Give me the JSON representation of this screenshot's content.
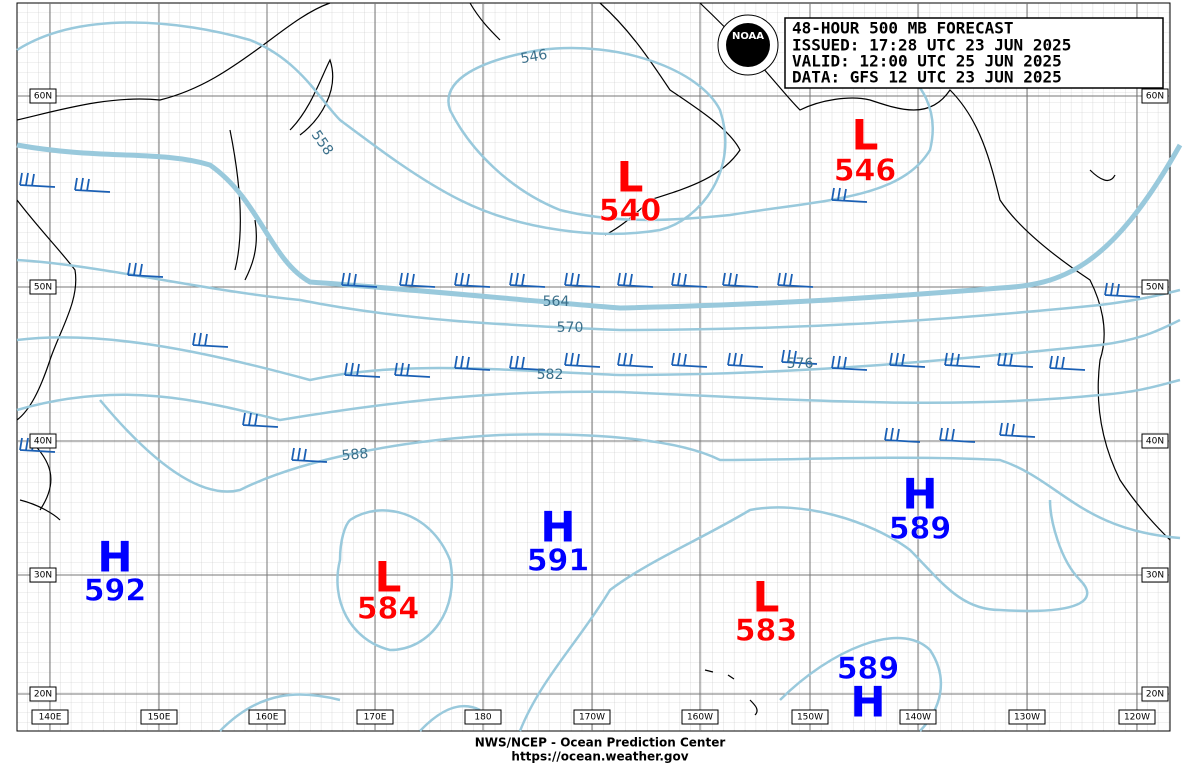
{
  "header": {
    "lines": [
      "48-HOUR 500 MB FORECAST",
      "ISSUED: 17:28 UTC 23 JUN 2025",
      "VALID:  12:00 UTC 25 JUN 2025",
      "DATA:  GFS 12 UTC 23 JUN 2025"
    ]
  },
  "logo": "NOAA",
  "centers": [
    {
      "type": "L",
      "value": 540
    },
    {
      "type": "L",
      "value": 546
    },
    {
      "type": "L",
      "value": 584
    },
    {
      "type": "L",
      "value": 583
    },
    {
      "type": "H",
      "value": 592
    },
    {
      "type": "H",
      "value": 591
    },
    {
      "type": "H",
      "value": 589
    },
    {
      "type": "H",
      "value": 589
    }
  ],
  "contour_labels": [
    546,
    558,
    564,
    570,
    576,
    582,
    588
  ],
  "longitudes": [
    "140E",
    "150E",
    "160E",
    "170E",
    "180",
    "170W",
    "160W",
    "150W",
    "140W",
    "130W",
    "120W"
  ],
  "latitudes": [
    "60N",
    "50N",
    "40N",
    "30N",
    "20N"
  ],
  "footer": {
    "line1": "NWS/NCEP - Ocean Prediction Center",
    "line2": "https://ocean.weather.gov"
  }
}
